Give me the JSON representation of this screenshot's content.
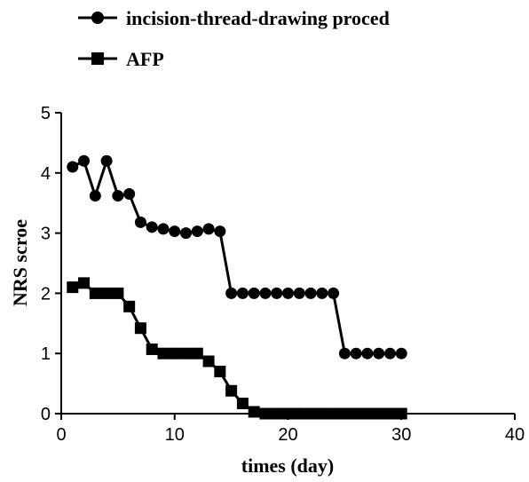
{
  "chart_data": {
    "type": "line",
    "title": "",
    "xlabel": "times (day)",
    "ylabel": "NRS scroe",
    "xlim": [
      0,
      40
    ],
    "ylim": [
      0,
      5
    ],
    "xticks": [
      0,
      10,
      20,
      30,
      40
    ],
    "yticks": [
      0,
      1,
      2,
      3,
      4,
      5
    ],
    "grid": false,
    "legend_position": "top-left",
    "series": [
      {
        "name": "incision-thread-drawing proced",
        "marker": "circle",
        "color": "#000000",
        "x": [
          1,
          2,
          3,
          4,
          5,
          6,
          7,
          8,
          9,
          10,
          11,
          12,
          13,
          14,
          15,
          16,
          17,
          18,
          19,
          20,
          21,
          22,
          23,
          24,
          25,
          26,
          27,
          28,
          29,
          30
        ],
        "y": [
          4.1,
          4.2,
          3.62,
          4.2,
          3.62,
          3.65,
          3.18,
          3.1,
          3.07,
          3.03,
          3.0,
          3.03,
          3.07,
          3.03,
          2.0,
          2.0,
          2.0,
          2.0,
          2.0,
          2.0,
          2.0,
          2.0,
          2.0,
          2.0,
          1.0,
          1.0,
          1.0,
          1.0,
          1.0,
          1.0
        ]
      },
      {
        "name": "AFP",
        "marker": "square",
        "color": "#000000",
        "x": [
          1,
          2,
          3,
          4,
          5,
          6,
          7,
          8,
          9,
          10,
          11,
          12,
          13,
          14,
          15,
          16,
          17,
          18,
          19,
          20,
          21,
          22,
          23,
          24,
          25,
          26,
          27,
          28,
          29,
          30
        ],
        "y": [
          2.1,
          2.17,
          2.0,
          2.0,
          2.0,
          1.78,
          1.42,
          1.07,
          1.0,
          1.0,
          1.0,
          1.0,
          0.87,
          0.7,
          0.38,
          0.17,
          0.03,
          0,
          0,
          0,
          0,
          0,
          0,
          0,
          0,
          0,
          0,
          0,
          0,
          0
        ]
      }
    ]
  }
}
